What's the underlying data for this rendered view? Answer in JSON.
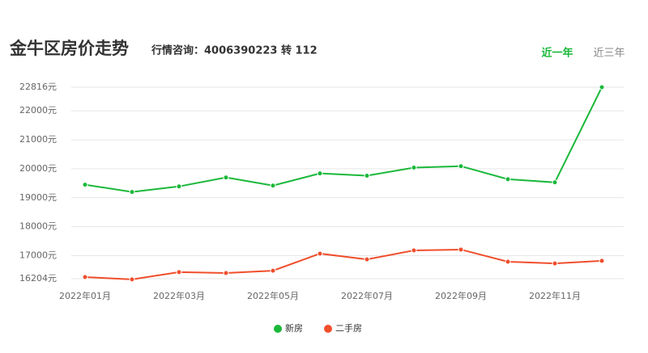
{
  "header": {
    "title": "金牛区房价走势",
    "hotline": "行情咨询：4006390223 转 112",
    "tabs": [
      "近一年",
      "近三年"
    ]
  },
  "chart_data": {
    "type": "line",
    "categories": [
      "2022年01月",
      null,
      "2022年03月",
      null,
      "2022年05月",
      null,
      "2022年07月",
      null,
      "2022年09月",
      null,
      "2022年11月",
      null
    ],
    "series": [
      {
        "name": "新房",
        "color": "#1ab83a",
        "values": [
          19450,
          19200,
          19390,
          19700,
          19420,
          19840,
          19760,
          20040,
          20090,
          19640,
          19530,
          22816
        ]
      },
      {
        "name": "二手房",
        "color": "#f04e2c",
        "values": [
          16260,
          16180,
          16430,
          16400,
          16480,
          17070,
          16870,
          17180,
          17210,
          16790,
          16730,
          16820
        ]
      }
    ],
    "ylim": [
      16204,
      22816
    ],
    "yticks": [
      {
        "value": 16204,
        "label": "16204元"
      },
      {
        "value": 17000,
        "label": "17000元"
      },
      {
        "value": 18000,
        "label": "18000元"
      },
      {
        "value": 19000,
        "label": "19000元"
      },
      {
        "value": 20000,
        "label": "20000元"
      },
      {
        "value": 21000,
        "label": "21000元"
      },
      {
        "value": 22000,
        "label": "22000元"
      },
      {
        "value": 22816,
        "label": "22816元"
      }
    ],
    "grid": true,
    "legend": "bottom"
  }
}
